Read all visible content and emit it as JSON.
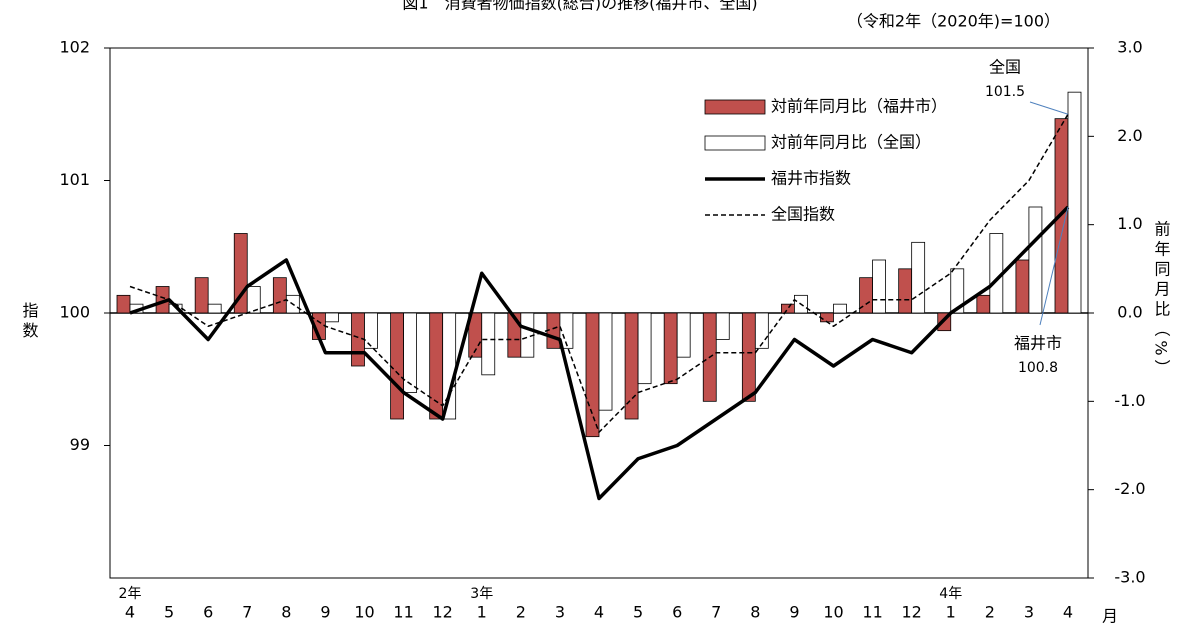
{
  "chart_data": {
    "type": "combo",
    "title": "図1　消費者物価指数(総合)の推移(福井市、全国)",
    "subtitle": "（令和2年（2020年)=100）",
    "ylabel": "指数",
    "y2label": "前年同月比（%）",
    "x_unit": "月",
    "categories": [
      "4",
      "5",
      "6",
      "7",
      "8",
      "9",
      "10",
      "11",
      "12",
      "1",
      "2",
      "3",
      "4",
      "5",
      "6",
      "7",
      "8",
      "9",
      "10",
      "11",
      "12",
      "1",
      "2",
      "3",
      "4"
    ],
    "category_groups": [
      "2年",
      null,
      null,
      null,
      null,
      null,
      null,
      null,
      null,
      "3年",
      null,
      null,
      null,
      null,
      null,
      null,
      null,
      null,
      null,
      null,
      null,
      "4年",
      null,
      null,
      null
    ],
    "ylim": [
      98,
      102
    ],
    "yticks": [
      99,
      100,
      101,
      102
    ],
    "y2lim": [
      -3,
      3
    ],
    "y2ticks": [
      {
        "value": 3,
        "label": "3.0"
      },
      {
        "value": 2,
        "label": "2.0"
      },
      {
        "value": 1,
        "label": "1.0"
      },
      {
        "value": 0,
        "label": "0.0"
      },
      {
        "value": -1,
        "label": "-1.0"
      },
      {
        "value": -2,
        "label": "-2.0"
      },
      {
        "value": -3,
        "label": "-3.0"
      }
    ],
    "legend": "upper right",
    "series": [
      {
        "name": "対前年同月比（福井市）",
        "type": "bar",
        "axis": "y2",
        "color": "#c0504d",
        "values": [
          0.2,
          0.3,
          0.4,
          0.9,
          0.4,
          -0.3,
          -0.6,
          -1.2,
          -1.2,
          -0.5,
          -0.5,
          -0.4,
          -1.4,
          -1.2,
          -0.8,
          -1.0,
          -1.0,
          0.1,
          -0.1,
          0.4,
          0.5,
          -0.2,
          0.2,
          0.6,
          2.2
        ]
      },
      {
        "name": "対前年同月比（全国）",
        "type": "bar",
        "axis": "y2",
        "color": "#ffffff",
        "values": [
          0.1,
          0.1,
          0.1,
          0.3,
          0.2,
          -0.1,
          -0.4,
          -0.9,
          -1.2,
          -0.7,
          -0.5,
          -0.4,
          -1.1,
          -0.8,
          -0.5,
          -0.3,
          -0.4,
          0.2,
          0.1,
          0.6,
          0.8,
          0.5,
          0.9,
          1.2,
          2.5
        ]
      },
      {
        "name": "福井市指数",
        "type": "line",
        "axis": "y",
        "color": "#000000",
        "line_style": "solid",
        "values": [
          100.0,
          100.1,
          99.8,
          100.2,
          100.4,
          99.7,
          99.7,
          99.4,
          99.2,
          100.3,
          99.9,
          99.8,
          98.6,
          98.9,
          99.0,
          99.2,
          99.4,
          99.8,
          99.6,
          99.8,
          99.7,
          100.0,
          100.2,
          100.5,
          100.8
        ]
      },
      {
        "name": "全国指数",
        "type": "line",
        "axis": "y",
        "color": "#000000",
        "line_style": "dashed",
        "values": [
          100.2,
          100.1,
          99.9,
          100.0,
          100.1,
          99.9,
          99.8,
          99.5,
          99.3,
          99.8,
          99.8,
          99.9,
          99.1,
          99.4,
          99.5,
          99.7,
          99.7,
          100.1,
          99.9,
          100.1,
          100.1,
          100.3,
          100.7,
          101.0,
          101.5
        ]
      }
    ],
    "annotations": [
      {
        "label": "全国",
        "value": 101.5
      },
      {
        "label": "福井市",
        "value": 100.8
      }
    ]
  }
}
